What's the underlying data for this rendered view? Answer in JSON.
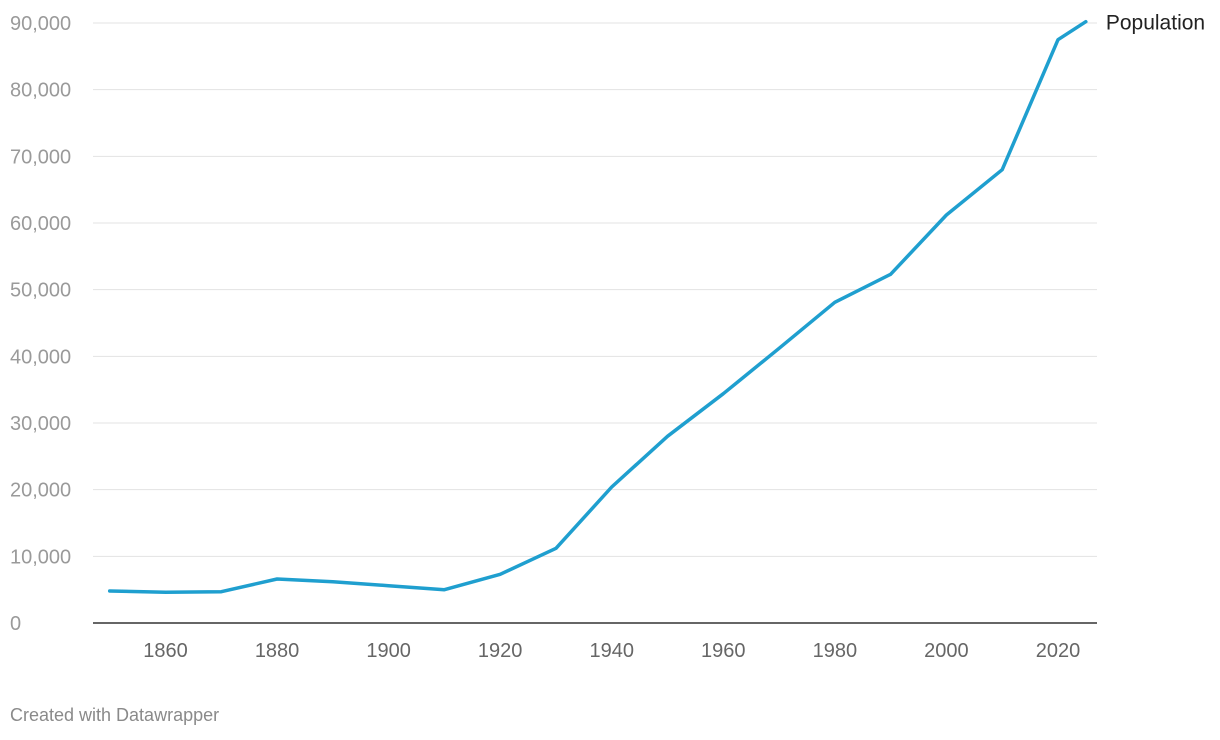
{
  "chart_data": {
    "type": "line",
    "title": "",
    "xlabel": "",
    "ylabel": "",
    "xlim": [
      1847,
      2027
    ],
    "ylim": [
      0,
      90000
    ],
    "yticks": [
      0,
      10000,
      20000,
      30000,
      40000,
      50000,
      60000,
      70000,
      80000,
      90000
    ],
    "ytick_labels": [
      "0",
      "10,000",
      "20,000",
      "30,000",
      "40,000",
      "50,000",
      "60,000",
      "70,000",
      "80,000",
      "90,000"
    ],
    "xticks": [
      1860,
      1880,
      1900,
      1920,
      1940,
      1960,
      1980,
      2000,
      2020
    ],
    "xtick_labels": [
      "1860",
      "1880",
      "1900",
      "1920",
      "1940",
      "1960",
      "1980",
      "2000",
      "2020"
    ],
    "grid": true,
    "series": [
      {
        "name": "Population",
        "color": "#1f9fcf",
        "x": [
          1850,
          1860,
          1870,
          1880,
          1890,
          1900,
          1910,
          1920,
          1930,
          1940,
          1950,
          1960,
          1970,
          1980,
          1990,
          2000,
          2010,
          2020,
          2025
        ],
        "y": [
          4800,
          4600,
          4700,
          6600,
          6200,
          5600,
          5000,
          7300,
          11200,
          20400,
          28000,
          34400,
          41200,
          48100,
          52300,
          61200,
          68000,
          87500,
          90200
        ]
      }
    ]
  },
  "credit": "Created with Datawrapper"
}
